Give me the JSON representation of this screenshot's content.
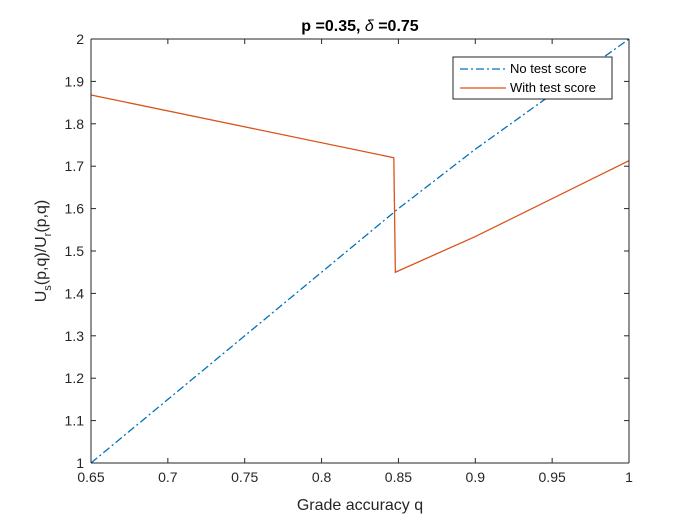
{
  "chart_data": {
    "type": "line",
    "title_parts": {
      "p_text": "p =0.35, ",
      "delta_symbol": "δ",
      "delta_text": " =0.75"
    },
    "xlabel": "Grade accuracy q",
    "ylabel_parts": {
      "a": "U",
      "a_sub": "s",
      "b": "(p,q)/U",
      "b_sub": "r",
      "c": "(p,q)"
    },
    "xlim": [
      0.65,
      1
    ],
    "ylim": [
      1,
      2
    ],
    "x_ticks": [
      "0.65",
      "0.7",
      "0.75",
      "0.8",
      "0.85",
      "0.9",
      "0.95",
      "1"
    ],
    "y_ticks": [
      "1",
      "1.1",
      "1.2",
      "1.3",
      "1.4",
      "1.5",
      "1.6",
      "1.7",
      "1.8",
      "1.9",
      "2"
    ],
    "x_tick_values": [
      0.65,
      0.7,
      0.75,
      0.8,
      0.85,
      0.9,
      0.95,
      1
    ],
    "y_tick_values": [
      1,
      1.1,
      1.2,
      1.3,
      1.4,
      1.5,
      1.6,
      1.7,
      1.8,
      1.9,
      2
    ],
    "grid": false,
    "legend_position": "top-right",
    "series": [
      {
        "name": "No test score",
        "color": "#0072BD",
        "style": "dash-dot",
        "x": [
          0.65,
          0.7,
          0.75,
          0.8,
          0.85,
          0.9,
          0.95,
          1
        ],
        "y": [
          1.0,
          1.15,
          1.3,
          1.45,
          1.6,
          1.74,
          1.87,
          2.0
        ]
      },
      {
        "name": "With test score",
        "color": "#D95319",
        "style": "solid",
        "x": [
          0.65,
          0.847,
          0.847,
          0.848,
          0.9,
          1
        ],
        "y": [
          1.868,
          1.72,
          1.72,
          1.45,
          1.534,
          1.713
        ]
      }
    ]
  }
}
